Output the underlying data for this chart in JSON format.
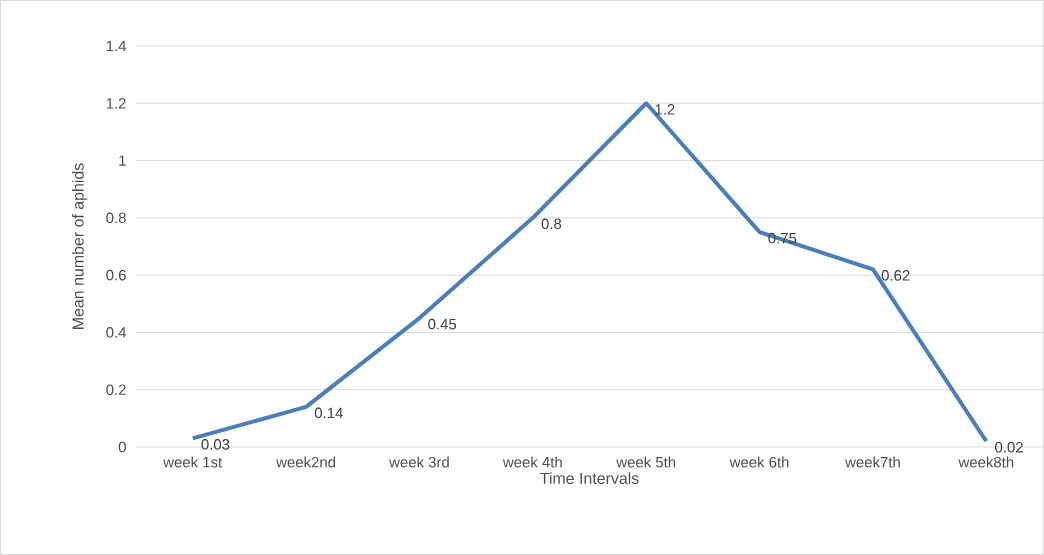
{
  "chart_data": {
    "type": "line",
    "xlabel": "Time Intervals",
    "ylabel": "Mean number of aphids",
    "categories": [
      "week 1st",
      "week2nd",
      "week 3rd",
      "week 4th",
      "week 5th",
      "week 6th",
      "week7th",
      "week8th"
    ],
    "values": [
      0.03,
      0.14,
      0.45,
      0.8,
      1.2,
      0.75,
      0.62,
      0.02
    ],
    "color": "#4a7ebb",
    "ylim": [
      0,
      1.4
    ],
    "yticks": [
      0,
      0.2,
      0.4,
      0.6,
      0.8,
      1,
      1.2,
      1.4
    ],
    "grid": "y",
    "data_labels": true,
    "marker": "none",
    "line_style": "solid"
  }
}
